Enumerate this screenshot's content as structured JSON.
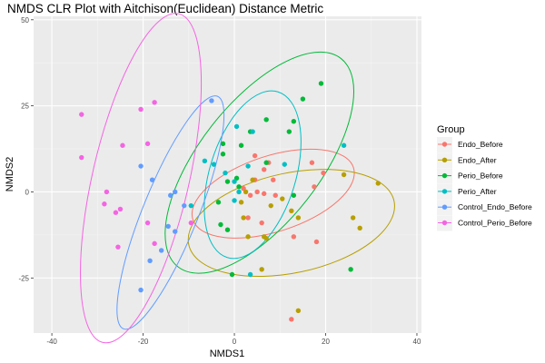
{
  "chart_data": {
    "type": "scatter",
    "title": "NMDS CLR Plot with Aitchison(Euclidean) Distance Metric",
    "xlabel": "NMDS1",
    "ylabel": "NMDS2",
    "xlim": [
      -44,
      41
    ],
    "ylim": [
      -41,
      51
    ],
    "xticks": [
      -40,
      -20,
      0,
      20,
      40
    ],
    "yticks": [
      -25,
      0,
      25,
      50
    ],
    "grid": true,
    "legend": {
      "title": "Group",
      "position": "right"
    },
    "series": [
      {
        "name": "Endo_Before",
        "color": "#F8766D",
        "points": [
          [
            4.5,
            10.5
          ],
          [
            6.5,
            6.5
          ],
          [
            7.5,
            8.5
          ],
          [
            4.5,
            3.5
          ],
          [
            8.5,
            3.5
          ],
          [
            2,
            1
          ],
          [
            5,
            0
          ],
          [
            6.5,
            -0.5
          ],
          [
            3.5,
            -1
          ],
          [
            9,
            -1
          ],
          [
            6,
            -9
          ],
          [
            13,
            -13
          ],
          [
            17,
            8.5
          ],
          [
            19.5,
            5.5
          ],
          [
            17.5,
            1.5
          ],
          [
            18,
            -14.5
          ],
          [
            3,
            -7.5
          ],
          [
            12.5,
            -37
          ]
        ]
      },
      {
        "name": "Endo_After",
        "color": "#B79F00",
        "points": [
          [
            24,
            5
          ],
          [
            31.5,
            2.5
          ],
          [
            4,
            3.5
          ],
          [
            10.5,
            -2
          ],
          [
            8,
            -4
          ],
          [
            1.5,
            -3
          ],
          [
            2,
            -7.5
          ],
          [
            12.5,
            -5.5
          ],
          [
            14,
            -7.5
          ],
          [
            26,
            -7.5
          ],
          [
            27.5,
            -10.5
          ],
          [
            6.5,
            -13
          ],
          [
            3,
            -13
          ],
          [
            7,
            -13.5
          ],
          [
            6,
            -22.5
          ],
          [
            14,
            -34.5
          ],
          [
            2.5,
            0
          ]
        ]
      },
      {
        "name": "Perio_Before",
        "color": "#00BA38",
        "points": [
          [
            19,
            31.5
          ],
          [
            15,
            27
          ],
          [
            7,
            21
          ],
          [
            13,
            20.5
          ],
          [
            3.5,
            17.5
          ],
          [
            12,
            17.5
          ],
          [
            -2.5,
            14
          ],
          [
            1.5,
            13.5
          ],
          [
            0.5,
            4
          ],
          [
            7,
            8.5
          ],
          [
            -1.5,
            3
          ],
          [
            -3.5,
            -3
          ],
          [
            -3,
            -9.5
          ],
          [
            -1.5,
            -11
          ],
          [
            -0.5,
            -24
          ],
          [
            25.5,
            -22.5
          ],
          [
            -2.5,
            11
          ],
          [
            1,
            1.5
          ],
          [
            13,
            -1
          ]
        ]
      },
      {
        "name": "Perio_After",
        "color": "#00BFC4",
        "points": [
          [
            0.5,
            19
          ],
          [
            4,
            17.5
          ],
          [
            -2,
            5.5
          ],
          [
            0,
            3
          ],
          [
            1,
            0
          ],
          [
            11,
            8
          ],
          [
            3,
            7.5
          ],
          [
            -6.5,
            9
          ],
          [
            -4.5,
            8
          ],
          [
            -9.5,
            -4
          ],
          [
            24,
            13.5
          ],
          [
            0,
            -2.5
          ],
          [
            3.5,
            -24
          ]
        ]
      },
      {
        "name": "Control_Endo_Before",
        "color": "#619CFF",
        "points": [
          [
            -5,
            26.5
          ],
          [
            -20.5,
            7.5
          ],
          [
            -18,
            3.5
          ],
          [
            -13,
            0
          ],
          [
            -14,
            -1
          ],
          [
            -14.5,
            -10
          ],
          [
            -13,
            -11.5
          ],
          [
            -16,
            -17
          ],
          [
            -18.5,
            -20
          ],
          [
            -20.5,
            -28.5
          ],
          [
            -11,
            -4
          ]
        ]
      },
      {
        "name": "Control_Perio_Before",
        "color": "#F564E3",
        "points": [
          [
            -33.5,
            22.5
          ],
          [
            -20.5,
            24
          ],
          [
            -17.5,
            26
          ],
          [
            -24.5,
            13.5
          ],
          [
            -19,
            14
          ],
          [
            -33.5,
            10
          ],
          [
            -28,
            0
          ],
          [
            -28.5,
            -3.5
          ],
          [
            -25,
            -5
          ],
          [
            -26,
            -6
          ],
          [
            -19,
            -9
          ],
          [
            -9.5,
            -9
          ],
          [
            -17.5,
            -15
          ],
          [
            -25.5,
            -16
          ]
        ]
      }
    ],
    "ellipses": [
      {
        "series": "Endo_Before",
        "cx": 8.5,
        "cy": -0.5,
        "rx": 18.5,
        "ry": 11,
        "angle": 18,
        "color": "#F8766D"
      },
      {
        "series": "Endo_After",
        "cx": 12.5,
        "cy": -9,
        "rx": 23,
        "ry": 14.5,
        "angle": 12,
        "color": "#B79F00"
      },
      {
        "series": "Perio_Before",
        "cx": 5.5,
        "cy": 8.5,
        "rx": 29,
        "ry": 17.5,
        "angle": 52,
        "color": "#00BA38"
      },
      {
        "series": "Perio_After",
        "cx": 4,
        "cy": 5,
        "rx": 19,
        "ry": 12.5,
        "angle": 73,
        "color": "#00BFC4"
      },
      {
        "series": "Control_Endo_Before",
        "cx": -14,
        "cy": -6,
        "rx": 27.5,
        "ry": 8,
        "angle": 68,
        "color": "#619CFF"
      },
      {
        "series": "Control_Perio_Before",
        "cx": -20.5,
        "cy": 4,
        "rx": 37,
        "ry": 14,
        "angle": 77,
        "color": "#F564E3"
      }
    ]
  }
}
